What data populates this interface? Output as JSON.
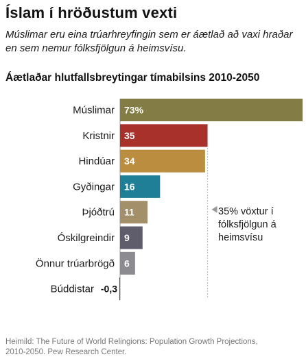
{
  "header": {
    "title": "Íslam í hröðustum vexti",
    "subtitle": "Múslimar eru eina trúarhreyfingin sem er áætlað að vaxi hraðar en sem nemur fólksfjölgun á heimsvísu."
  },
  "chart_data": {
    "type": "bar",
    "orientation": "horizontal",
    "title": "Áætlaðar hlutfallsbreytingar tímabilsins 2010-2050",
    "categories": [
      "Múslimar",
      "Kristnir",
      "Hindúar",
      "Gyðingar",
      "Þjóðtrú",
      "Óskilgreindir",
      "Önnur trúarbrögð",
      "Búddistar"
    ],
    "values": [
      73,
      35,
      34,
      16,
      11,
      9,
      6,
      -0.3
    ],
    "value_labels": [
      "73%",
      "35",
      "34",
      "16",
      "11",
      "9",
      "6",
      "-0,3"
    ],
    "colors": [
      "#847c45",
      "#a8312b",
      "#bb8d3e",
      "#1e7f96",
      "#a38f6a",
      "#5f5d6b",
      "#8c8b8f",
      "#555555"
    ],
    "xlim": [
      0,
      73
    ],
    "reference_line": {
      "value": 35,
      "label": "35% vöxtur í fólksfjölgun á heimsvísu"
    },
    "grid": false,
    "legend": "none"
  },
  "annotation": {
    "text": "35% vöxtur í fólksfjölgun á heimsvísu"
  },
  "footer": {
    "source": "Heimild: The Future of World Relingions: Population Growth Projections, 2010-2050. Pew Research Center."
  }
}
